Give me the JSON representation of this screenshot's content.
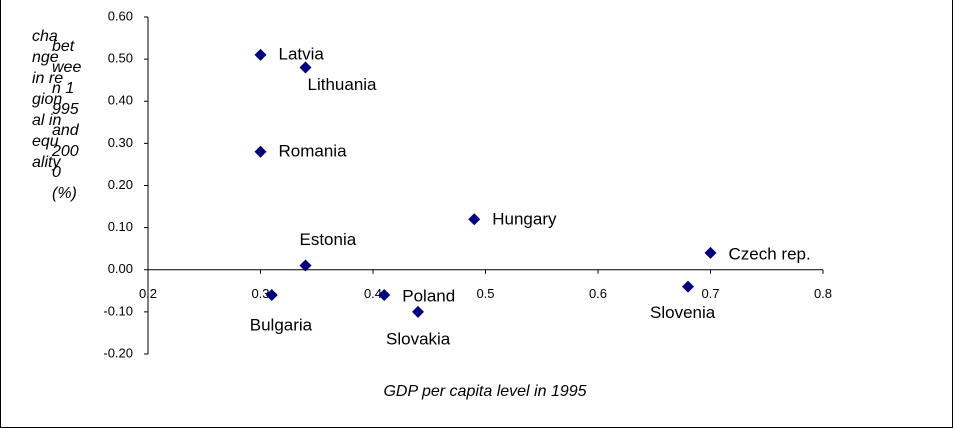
{
  "chart_data": {
    "type": "scatter",
    "x_label": "GDP per capita level in 1995",
    "y_label": "change in regional inequality",
    "y_label_2": "between 1995 and 2000 (%)",
    "labels": [
      "Latvia",
      "Lithuania",
      "Romania",
      "Estonia",
      "Bulgaria",
      "Poland",
      "Slovakia",
      "Hungary",
      "Slovenia",
      "Czech rep."
    ],
    "x": [
      0.3,
      0.34,
      0.3,
      0.34,
      0.31,
      0.41,
      0.44,
      0.49,
      0.68,
      0.7
    ],
    "values": [
      0.51,
      0.48,
      0.28,
      0.01,
      -0.06,
      -0.06,
      -0.1,
      0.12,
      -0.04,
      0.04
    ],
    "color": "#000080",
    "xlim": [
      0.2,
      0.8
    ],
    "xticks": [
      0.2,
      0.3,
      0.4,
      0.5,
      0.6,
      0.7,
      0.8
    ],
    "ylim": [
      -0.2,
      0.6
    ],
    "yticks": [
      {
        "value": -0.2,
        "label": "-0.20"
      },
      {
        "value": -0.1,
        "label": "-0.10"
      },
      {
        "value": 0,
        "label": "0.00"
      },
      {
        "value": 0.1,
        "label": "0.10"
      },
      {
        "value": 0.2,
        "label": "0.20"
      },
      {
        "value": 0.3,
        "label": "0.30"
      },
      {
        "value": 0.4,
        "label": "0.40"
      },
      {
        "value": 0.5,
        "label": "0.50"
      },
      {
        "value": 0.6,
        "label": "0.60"
      }
    ]
  }
}
